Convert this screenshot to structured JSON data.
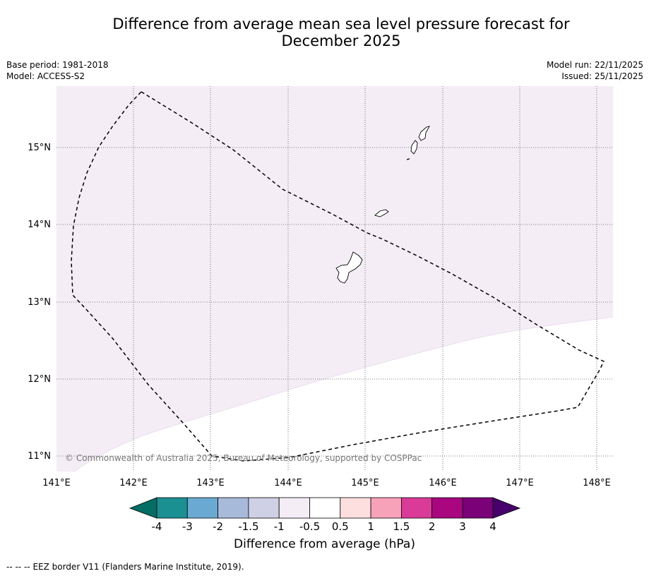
{
  "header": {
    "title_line1": "Difference from average mean sea level pressure forecast for",
    "title_line2": "December 2025",
    "base_period": "Base period: 1981-2018",
    "model": "Model: ACCESS-S2",
    "model_run": "Model run: 22/11/2025",
    "issued": "Issued: 25/11/2025"
  },
  "map": {
    "longitude_labels": [
      "141°E",
      "142°E",
      "143°E",
      "144°E",
      "145°E",
      "146°E",
      "147°E",
      "148°E"
    ],
    "latitude_labels": [
      "15°N",
      "14°N",
      "13°N",
      "12°N",
      "11°N"
    ],
    "copyright": "© Commonwealth of Australia 2025, Bureau of Meteorology, supported by COSPPac",
    "fill_colors": {
      "upper_region": "#f4edf6",
      "lower_region": "#ffffff"
    }
  },
  "colorbar": {
    "tick_labels": [
      "-4",
      "-3",
      "-2",
      "-1.5",
      "-1",
      "-0.5",
      "0.5",
      "1",
      "1.5",
      "2",
      "3",
      "4"
    ],
    "colors": [
      "#1a9093",
      "#6aaad2",
      "#a7bad9",
      "#cfcfe6",
      "#f4edf6",
      "#ffffff",
      "#fddfdf",
      "#f8a2b9",
      "#da3a98",
      "#aa0680",
      "#7b0179"
    ],
    "extend_low_color": "#046d64",
    "extend_high_color": "#47006b",
    "label": "Difference from average (hPa)"
  },
  "footer": {
    "legend_symbol": "--  --  --",
    "legend_text": "EEZ border V11 (Flanders Marine Institute, 2019)."
  }
}
